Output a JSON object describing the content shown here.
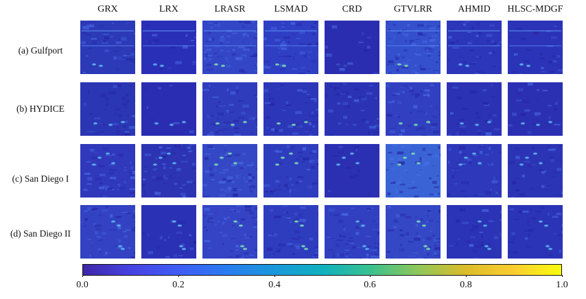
{
  "columns": [
    "GRX",
    "LRX",
    "LRASR",
    "LSMAD",
    "CRD",
    "GTVLRR",
    "AHMID",
    "HLSC-MDGF"
  ],
  "rows": [
    "(a) Gulfport",
    "(b) HYDICE",
    "(c) San Diego I",
    "(d) San Diego II"
  ],
  "colorbar": {
    "ticks": [
      "0.0",
      "0.2",
      "0.4",
      "0.6",
      "0.8",
      "1.0"
    ],
    "range": [
      0.0,
      1.0
    ],
    "colormap": "parula"
  },
  "colors": {
    "low": "#3e26a8",
    "mid": "#1a98dc",
    "high": "#f9fb0e"
  }
}
